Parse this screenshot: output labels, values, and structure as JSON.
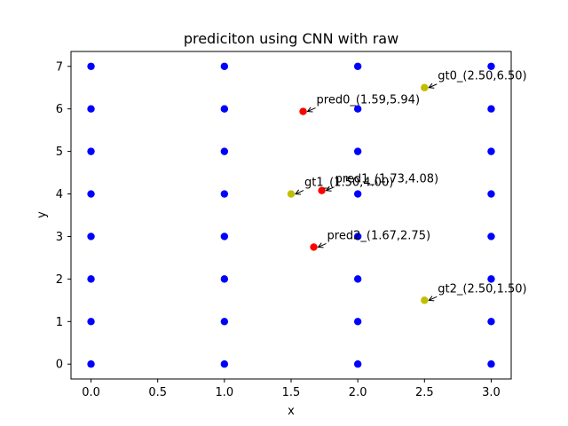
{
  "chart_data": {
    "type": "scatter",
    "title": "prediciton using CNN with raw",
    "xlabel": "x",
    "ylabel": "y",
    "xlim": [
      -0.15,
      3.15
    ],
    "ylim": [
      -0.35,
      7.35
    ],
    "xticks": [
      0.0,
      0.5,
      1.0,
      1.5,
      2.0,
      2.5,
      3.0
    ],
    "xtick_labels": [
      "0.0",
      "0.5",
      "1.0",
      "1.5",
      "2.0",
      "2.5",
      "3.0"
    ],
    "yticks": [
      0,
      1,
      2,
      3,
      4,
      5,
      6,
      7
    ],
    "ytick_labels": [
      "0",
      "1",
      "2",
      "3",
      "4",
      "5",
      "6",
      "7"
    ],
    "grid": false,
    "legend": null,
    "series": [
      {
        "color": "#0000ff",
        "points": [
          [
            0,
            0
          ],
          [
            0,
            1
          ],
          [
            0,
            2
          ],
          [
            0,
            3
          ],
          [
            0,
            4
          ],
          [
            0,
            5
          ],
          [
            0,
            6
          ],
          [
            0,
            7
          ],
          [
            1,
            0
          ],
          [
            1,
            1
          ],
          [
            1,
            2
          ],
          [
            1,
            3
          ],
          [
            1,
            4
          ],
          [
            1,
            5
          ],
          [
            1,
            6
          ],
          [
            1,
            7
          ],
          [
            2,
            0
          ],
          [
            2,
            1
          ],
          [
            2,
            2
          ],
          [
            2,
            3
          ],
          [
            2,
            4
          ],
          [
            2,
            5
          ],
          [
            2,
            6
          ],
          [
            2,
            7
          ],
          [
            3,
            0
          ],
          [
            3,
            1
          ],
          [
            3,
            2
          ],
          [
            3,
            3
          ],
          [
            3,
            4
          ],
          [
            3,
            5
          ],
          [
            3,
            6
          ],
          [
            3,
            7
          ]
        ]
      },
      {
        "color": "#ff0000",
        "points": [
          [
            1.59,
            5.94
          ],
          [
            1.73,
            4.08
          ],
          [
            1.67,
            2.75
          ]
        ]
      },
      {
        "color": "#bfbf00",
        "points": [
          [
            2.5,
            6.5
          ],
          [
            1.5,
            4.0
          ],
          [
            2.5,
            1.5
          ]
        ]
      }
    ],
    "annotations": [
      {
        "text": "pred0_(1.59,5.94)",
        "x": 1.59,
        "y": 5.94
      },
      {
        "text": "pred1_(1.73,4.08)",
        "x": 1.73,
        "y": 4.08
      },
      {
        "text": "pred2_(1.67,2.75)",
        "x": 1.67,
        "y": 2.75
      },
      {
        "text": "gt0_(2.50,6.50)",
        "x": 2.5,
        "y": 6.5
      },
      {
        "text": "gt1_(1.50,4.00)",
        "x": 1.5,
        "y": 4.0
      },
      {
        "text": "gt2_(2.50,1.50)",
        "x": 2.5,
        "y": 1.5
      }
    ]
  }
}
